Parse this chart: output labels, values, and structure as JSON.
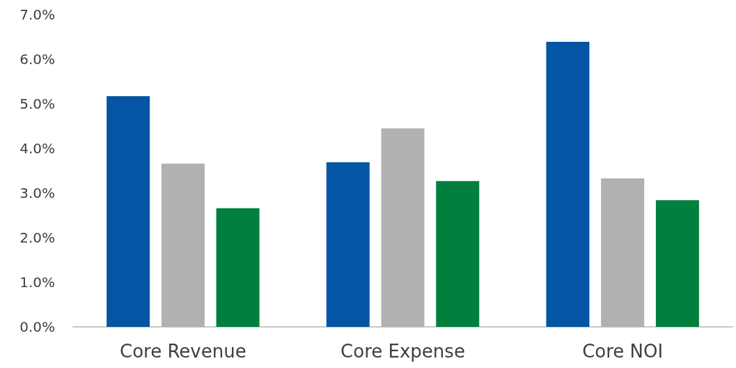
{
  "chart_data": {
    "type": "bar",
    "categories": [
      "Core Revenue",
      "Core Expense",
      "Core NOI"
    ],
    "series": [
      {
        "color": "#0455a4",
        "values": [
          5.17,
          3.69,
          6.39
        ]
      },
      {
        "color": "#b1b1b3",
        "values": [
          3.66,
          4.45,
          3.33
        ]
      },
      {
        "color": "#007f3e",
        "values": [
          2.66,
          3.27,
          2.84
        ]
      }
    ],
    "ylim": [
      0,
      7
    ],
    "yticks": [
      {
        "value": 0,
        "label": "0.0%"
      },
      {
        "value": 1,
        "label": "1.0%"
      },
      {
        "value": 2,
        "label": "2.0%"
      },
      {
        "value": 3,
        "label": "3.0%"
      },
      {
        "value": 4,
        "label": "4.0%"
      },
      {
        "value": 5,
        "label": "5.0%"
      },
      {
        "value": 6,
        "label": "6.0%"
      },
      {
        "value": 7,
        "label": "7.0%"
      }
    ],
    "grid": false
  }
}
